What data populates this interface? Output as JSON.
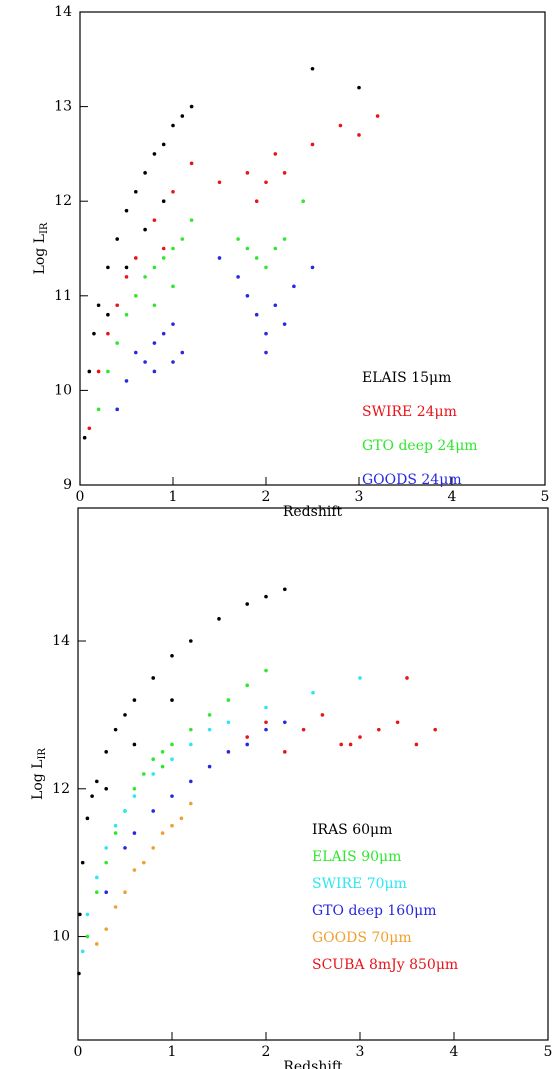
{
  "chart_data": [
    {
      "type": "scatter",
      "x_label": "Redshift",
      "y_label": "Log L",
      "y_label_subscript": "IR",
      "xlim": [
        0,
        5
      ],
      "ylim": [
        9,
        14
      ],
      "xticks": [
        0,
        1,
        2,
        3,
        4,
        5
      ],
      "yticks": [
        9,
        10,
        11,
        12,
        13,
        14
      ],
      "legend": "lower right",
      "series": [
        {
          "name": "ELAIS 15μm",
          "color": "#000000",
          "x": [
            0.05,
            0.1,
            0.15,
            0.2,
            0.3,
            0.4,
            0.5,
            0.6,
            0.7,
            0.8,
            0.9,
            1.0,
            1.1,
            0.3,
            0.5,
            0.7,
            0.9,
            1.2,
            2.5,
            3.0
          ],
          "values": [
            9.5,
            10.2,
            10.6,
            10.9,
            11.3,
            11.6,
            11.9,
            12.1,
            12.3,
            12.5,
            12.6,
            12.8,
            12.9,
            10.8,
            11.3,
            11.7,
            12.0,
            13.0,
            13.4,
            13.2
          ]
        },
        {
          "name": "SWIRE 24μm",
          "color": "#e8141a",
          "x": [
            0.1,
            0.2,
            0.3,
            0.4,
            0.5,
            0.6,
            0.8,
            1.0,
            1.2,
            1.5,
            1.8,
            2.0,
            2.2,
            2.5,
            2.8,
            3.0,
            3.2,
            1.9,
            2.1,
            0.9
          ],
          "values": [
            9.6,
            10.2,
            10.6,
            10.9,
            11.2,
            11.4,
            11.8,
            12.1,
            12.4,
            12.2,
            12.3,
            12.2,
            12.3,
            12.6,
            12.8,
            12.7,
            12.9,
            12.0,
            12.5,
            11.5
          ]
        },
        {
          "name": "GTO deep 24μm",
          "color": "#2de82d",
          "x": [
            0.2,
            0.3,
            0.4,
            0.5,
            0.6,
            0.7,
            0.8,
            0.9,
            1.0,
            1.1,
            1.2,
            0.8,
            1.0,
            1.7,
            1.8,
            1.9,
            2.0,
            2.1,
            2.2,
            2.4
          ],
          "values": [
            9.8,
            10.2,
            10.5,
            10.8,
            11.0,
            11.2,
            11.3,
            11.4,
            11.5,
            11.6,
            11.8,
            10.9,
            11.1,
            11.6,
            11.5,
            11.4,
            11.3,
            11.5,
            11.6,
            12.0
          ]
        },
        {
          "name": "GOODS 24μm",
          "color": "#2828e0",
          "x": [
            0.4,
            0.5,
            0.6,
            0.7,
            0.8,
            0.9,
            1.0,
            1.1,
            0.8,
            1.0,
            1.5,
            1.7,
            1.8,
            1.9,
            2.0,
            2.1,
            2.2,
            2.3,
            2.5,
            2.0
          ],
          "values": [
            9.8,
            10.1,
            10.4,
            10.3,
            10.5,
            10.6,
            10.7,
            10.4,
            10.2,
            10.3,
            11.4,
            11.2,
            11.0,
            10.8,
            10.6,
            10.9,
            10.7,
            11.1,
            11.3,
            10.4
          ]
        }
      ]
    },
    {
      "type": "scatter",
      "x_label": "Redshift",
      "y_label": "Log L",
      "y_label_subscript": "IR",
      "xlim": [
        0,
        5
      ],
      "ylim": [
        8.6,
        15.8
      ],
      "xticks": [
        0,
        1,
        2,
        3,
        4,
        5
      ],
      "yticks": [
        10,
        12,
        14
      ],
      "legend": "lower right",
      "series": [
        {
          "name": "IRAS 60μm",
          "color": "#000000",
          "x": [
            0.01,
            0.02,
            0.05,
            0.1,
            0.15,
            0.2,
            0.3,
            0.4,
            0.5,
            0.6,
            0.8,
            1.0,
            1.2,
            1.5,
            1.8,
            2.0,
            2.2,
            0.3,
            0.6,
            1.0
          ],
          "values": [
            9.5,
            10.3,
            11.0,
            11.6,
            11.9,
            12.1,
            12.5,
            12.8,
            13.0,
            13.2,
            13.5,
            13.8,
            14.0,
            14.3,
            14.5,
            14.6,
            14.7,
            12.0,
            12.6,
            13.2
          ]
        },
        {
          "name": "ELAIS 90μm",
          "color": "#2de82d",
          "x": [
            0.1,
            0.2,
            0.3,
            0.4,
            0.5,
            0.6,
            0.7,
            0.8,
            0.9,
            1.0,
            1.2,
            1.4,
            1.6,
            1.8,
            2.0,
            0.9
          ],
          "values": [
            10.0,
            10.6,
            11.0,
            11.4,
            11.7,
            12.0,
            12.2,
            12.4,
            12.5,
            12.6,
            12.8,
            13.0,
            13.2,
            13.4,
            13.6,
            12.3
          ]
        },
        {
          "name": "SWIRE 70μm",
          "color": "#2ee6f0",
          "x": [
            0.05,
            0.1,
            0.2,
            0.3,
            0.4,
            0.5,
            0.6,
            0.8,
            1.0,
            1.2,
            1.4,
            1.6,
            2.0,
            2.5,
            3.0
          ],
          "values": [
            9.8,
            10.3,
            10.8,
            11.2,
            11.5,
            11.7,
            11.9,
            12.2,
            12.4,
            12.6,
            12.8,
            12.9,
            13.1,
            13.3,
            13.5
          ]
        },
        {
          "name": "GTO deep 160μm",
          "color": "#2828e0",
          "x": [
            0.3,
            0.5,
            0.6,
            0.8,
            1.0,
            1.2,
            1.4,
            1.6,
            1.8,
            2.0,
            2.2
          ],
          "values": [
            10.6,
            11.2,
            11.4,
            11.7,
            11.9,
            12.1,
            12.3,
            12.5,
            12.6,
            12.8,
            12.9
          ]
        },
        {
          "name": "GOODS 70μm",
          "color": "#f0a030",
          "x": [
            0.2,
            0.4,
            0.5,
            0.6,
            0.8,
            0.9,
            1.0,
            1.1,
            1.2,
            0.3,
            0.7
          ],
          "values": [
            9.9,
            10.4,
            10.6,
            10.9,
            11.2,
            11.4,
            11.5,
            11.6,
            11.8,
            10.1,
            11.0
          ]
        },
        {
          "name": "SCUBA 8mJy 850μm",
          "color": "#e8141a",
          "x": [
            1.8,
            2.0,
            2.2,
            2.4,
            2.6,
            2.8,
            3.0,
            3.2,
            3.4,
            3.6,
            3.8,
            2.9,
            3.5
          ],
          "values": [
            12.7,
            12.9,
            12.5,
            12.8,
            13.0,
            12.6,
            12.7,
            12.8,
            12.9,
            12.6,
            12.8,
            12.6,
            13.5
          ]
        }
      ]
    }
  ]
}
